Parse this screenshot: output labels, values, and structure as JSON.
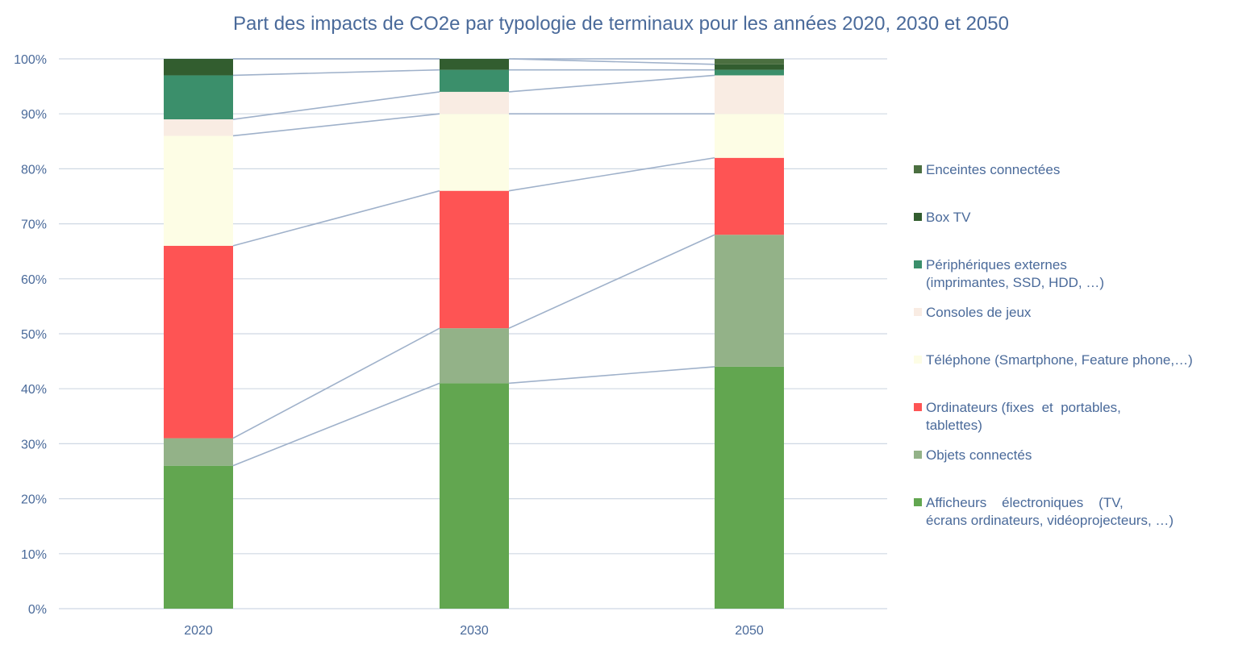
{
  "chart_data": {
    "type": "bar",
    "stacked": true,
    "percent": true,
    "title": "Part des impacts de CO2e par typologie de terminaux pour les années 2020, 2030 et 2050",
    "categories": [
      "2020",
      "2030",
      "2050"
    ],
    "ylim": [
      0,
      100
    ],
    "y_tick_labels": [
      "0%",
      "10%",
      "20%",
      "30%",
      "40%",
      "50%",
      "60%",
      "70%",
      "80%",
      "90%",
      "100%"
    ],
    "grid": true,
    "legend_position": "right",
    "series_lines": true,
    "series": [
      {
        "name": "Afficheurs électroniques (TV, écrans ordinateurs, vidéoprojecteurs, …)",
        "legend_lines": [
          "Afficheurs    électroniques    (TV,",
          "écrans ordinateurs, vidéoprojecteurs, …)"
        ],
        "color": "#62a650",
        "values": [
          26,
          41,
          44
        ]
      },
      {
        "name": "Objets connectés",
        "legend_lines": [
          "Objets connectés"
        ],
        "color": "#93b288",
        "values": [
          5,
          10,
          24
        ]
      },
      {
        "name": "Ordinateurs (fixes et portables, tablettes)",
        "legend_lines": [
          "Ordinateurs (fixes  et  portables,",
          "tablettes)"
        ],
        "color": "#fe5454",
        "values": [
          35,
          25,
          14
        ]
      },
      {
        "name": "Téléphone (Smartphone, Feature phone,…)",
        "legend_lines": [
          "Téléphone (Smartphone, Feature phone,…)"
        ],
        "color": "#fdfde5",
        "values": [
          20,
          14,
          8
        ]
      },
      {
        "name": "Consoles de jeux",
        "legend_lines": [
          "Consoles de jeux"
        ],
        "color": "#f9ece3",
        "values": [
          3,
          4,
          7
        ]
      },
      {
        "name": "Périphériques externes (imprimantes, SSD, HDD, …)",
        "legend_lines": [
          "Périphériques externes",
          "(imprimantes, SSD, HDD, …)"
        ],
        "color": "#3b8f6b",
        "values": [
          8,
          4,
          1
        ]
      },
      {
        "name": "Box TV",
        "legend_lines": [
          "Box TV"
        ],
        "color": "#325d2f",
        "values": [
          3,
          2,
          1
        ]
      },
      {
        "name": "Enceintes connectées",
        "legend_lines": [
          "Enceintes connectées"
        ],
        "color": "#4b6f40",
        "values": [
          0,
          0,
          1
        ]
      }
    ],
    "colors": {
      "text": "#4a6a9a",
      "grid": "#cfd8e3",
      "connector": "#9fb1ca"
    }
  }
}
